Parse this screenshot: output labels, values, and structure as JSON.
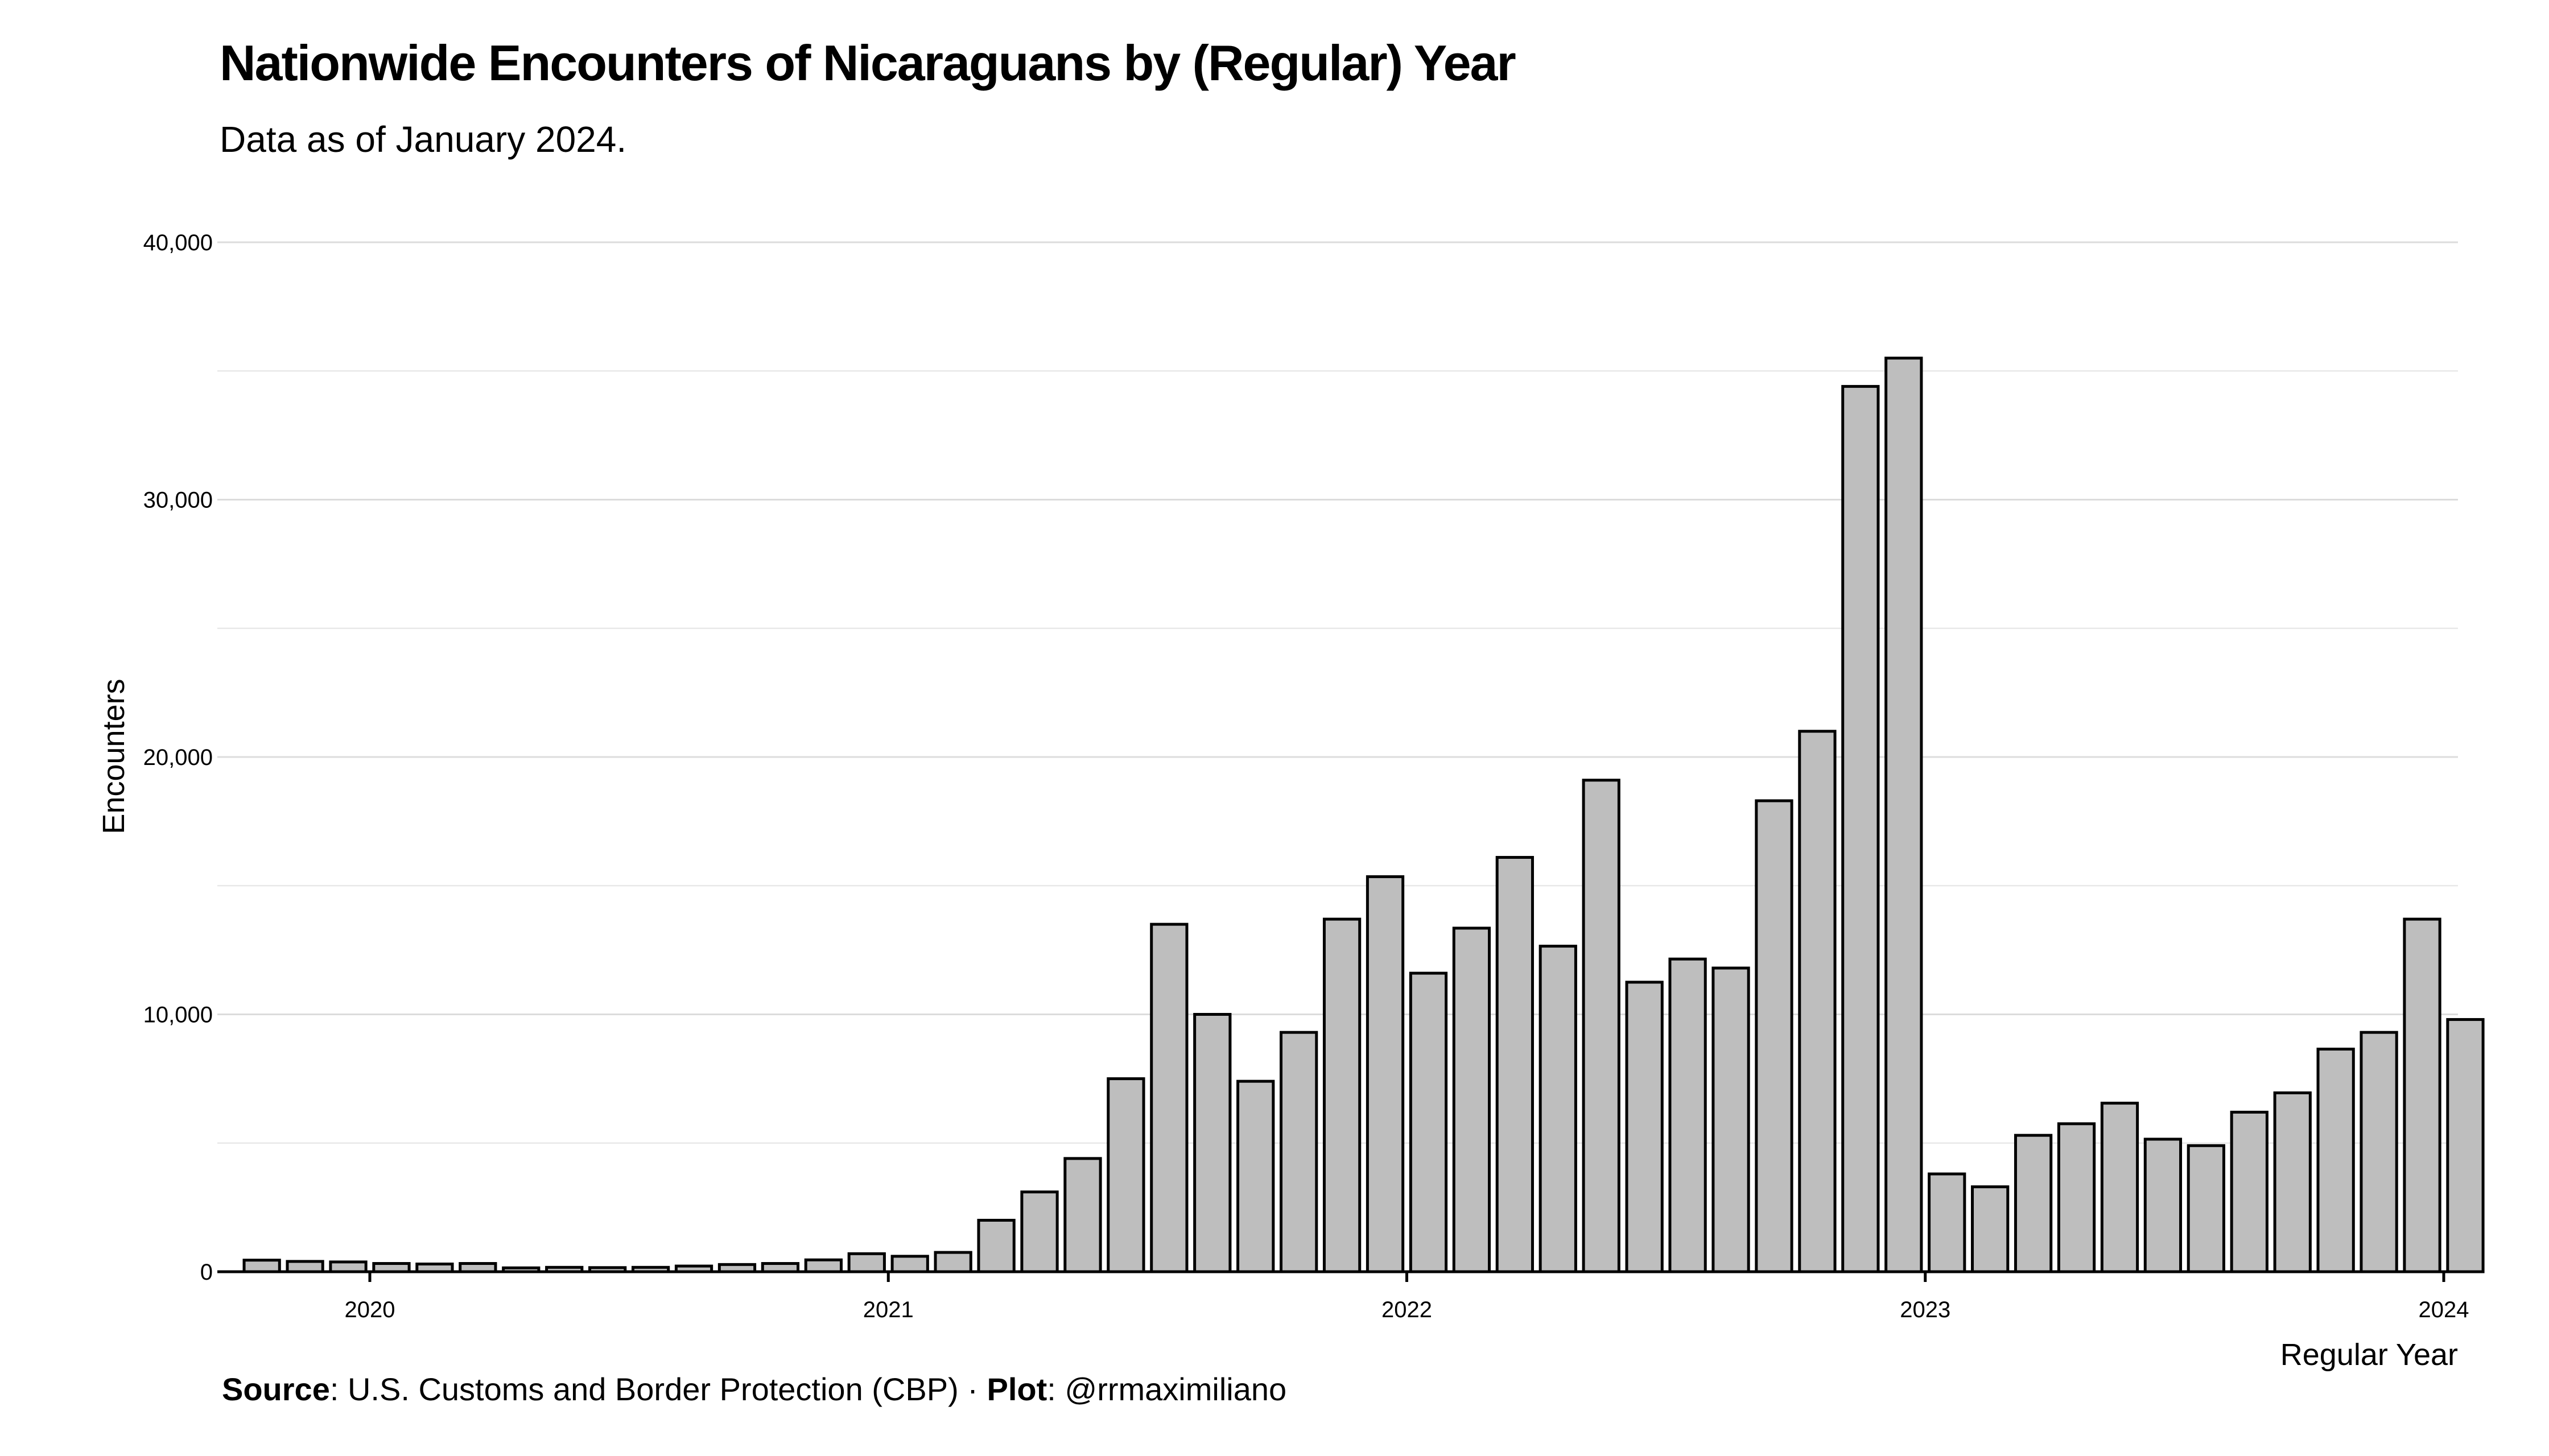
{
  "chart_data": {
    "type": "bar",
    "title": "Nationwide Encounters of Nicaraguans by (Regular) Year",
    "subtitle": "Data as of January 2024.",
    "xlabel": "Regular Year",
    "ylabel": "Encounters",
    "x_ticks": [
      "2020",
      "2021",
      "2022",
      "2023",
      "2024"
    ],
    "y_ticks": [
      "0",
      "10,000",
      "20,000",
      "30,000",
      "40,000"
    ],
    "ylim": [
      0,
      40000
    ],
    "grid": true,
    "bar_color": "#bebebe",
    "outline_color": "#000000",
    "categories": [
      "2019-10",
      "2019-11",
      "2019-12",
      "2020-01",
      "2020-02",
      "2020-03",
      "2020-04",
      "2020-05",
      "2020-06",
      "2020-07",
      "2020-08",
      "2020-09",
      "2020-10",
      "2020-11",
      "2020-12",
      "2021-01",
      "2021-02",
      "2021-03",
      "2021-04",
      "2021-05",
      "2021-06",
      "2021-07",
      "2021-08",
      "2021-09",
      "2021-10",
      "2021-11",
      "2021-12",
      "2022-01",
      "2022-02",
      "2022-03",
      "2022-04",
      "2022-05",
      "2022-06",
      "2022-07",
      "2022-08",
      "2022-09",
      "2022-10",
      "2022-11",
      "2022-12",
      "2023-01",
      "2023-02",
      "2023-03",
      "2023-04",
      "2023-05",
      "2023-06",
      "2023-07",
      "2023-08",
      "2023-09",
      "2023-10",
      "2023-11",
      "2023-12",
      "2024-01"
    ],
    "values": [
      450,
      400,
      380,
      320,
      300,
      320,
      150,
      170,
      160,
      170,
      220,
      280,
      320,
      460,
      700,
      600,
      750,
      2000,
      3100,
      4400,
      7500,
      13500,
      10000,
      7400,
      9300,
      13700,
      15350,
      11600,
      13350,
      16100,
      12650,
      19100,
      11250,
      12150,
      11800,
      18300,
      21000,
      34400,
      35500,
      3800,
      3300,
      5300,
      5750,
      6550,
      5150,
      4900,
      6200,
      6950,
      8650,
      9300,
      13700,
      9800
    ]
  },
  "caption": {
    "source_label": "Source",
    "source_text": ": U.S. Customs and Border Protection (CBP) · ",
    "plot_label": "Plot",
    "plot_text": ": @rrmaximiliano"
  }
}
